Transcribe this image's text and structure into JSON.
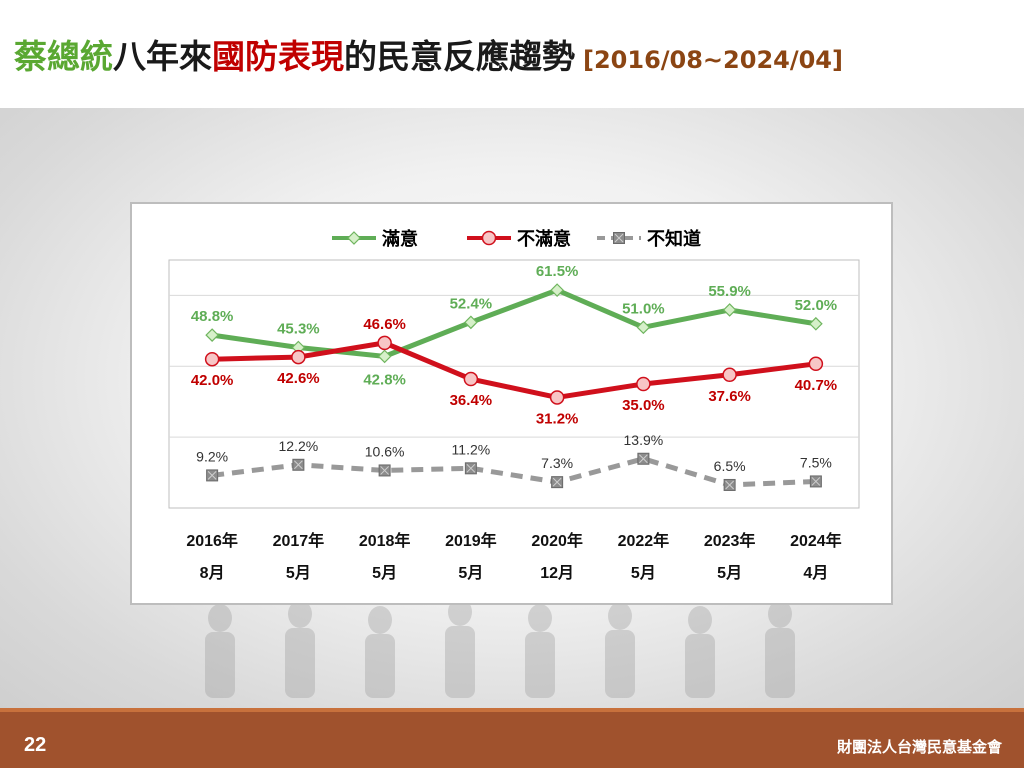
{
  "header": {
    "title_part1": "蔡總統",
    "title_part2": "八年來",
    "title_part3": "國防表現",
    "title_part4": "的民意反應趨勢",
    "title_range": "[2016/08~2024/04]",
    "colors": {
      "green": "#5aa832",
      "black": "#1a1a1a",
      "red": "#c00000",
      "brown": "#8b4513"
    }
  },
  "chart_data": {
    "type": "line",
    "categories": [
      [
        "2016年",
        "8月"
      ],
      [
        "2017年",
        "5月"
      ],
      [
        "2018年",
        "5月"
      ],
      [
        "2019年",
        "5月"
      ],
      [
        "2020年",
        "12月"
      ],
      [
        "2022年",
        "5月"
      ],
      [
        "2023年",
        "5月"
      ],
      [
        "2024年",
        "4月"
      ]
    ],
    "series": [
      {
        "name": "滿意",
        "values": [
          48.8,
          45.3,
          42.8,
          52.4,
          61.5,
          51.0,
          55.9,
          52.0
        ],
        "labels": [
          "48.8%",
          "45.3%",
          "42.8%",
          "52.4%",
          "61.5%",
          "51.0%",
          "55.9%",
          "52.0%"
        ],
        "color": "#5fad56",
        "marker": "diamond",
        "style": "solid"
      },
      {
        "name": "不滿意",
        "values": [
          42.0,
          42.6,
          46.6,
          36.4,
          31.2,
          35.0,
          37.6,
          40.7
        ],
        "labels": [
          "42.0%",
          "42.6%",
          "46.6%",
          "36.4%",
          "31.2%",
          "35.0%",
          "37.6%",
          "40.7%"
        ],
        "color": "#d0101c",
        "marker": "circle",
        "style": "solid"
      },
      {
        "name": "不知道",
        "values": [
          9.2,
          12.2,
          10.6,
          11.2,
          7.3,
          13.9,
          6.5,
          7.5
        ],
        "labels": [
          "9.2%",
          "12.2%",
          "10.6%",
          "11.2%",
          "7.3%",
          "13.9%",
          "6.5%",
          "7.5%"
        ],
        "color": "#999999",
        "marker": "square",
        "style": "dashed"
      }
    ],
    "ylim": [
      0,
      70
    ],
    "legend_position": "top",
    "grid": true
  },
  "footer": {
    "page_number": "22",
    "organization": "財團法人台灣民意基金會"
  }
}
